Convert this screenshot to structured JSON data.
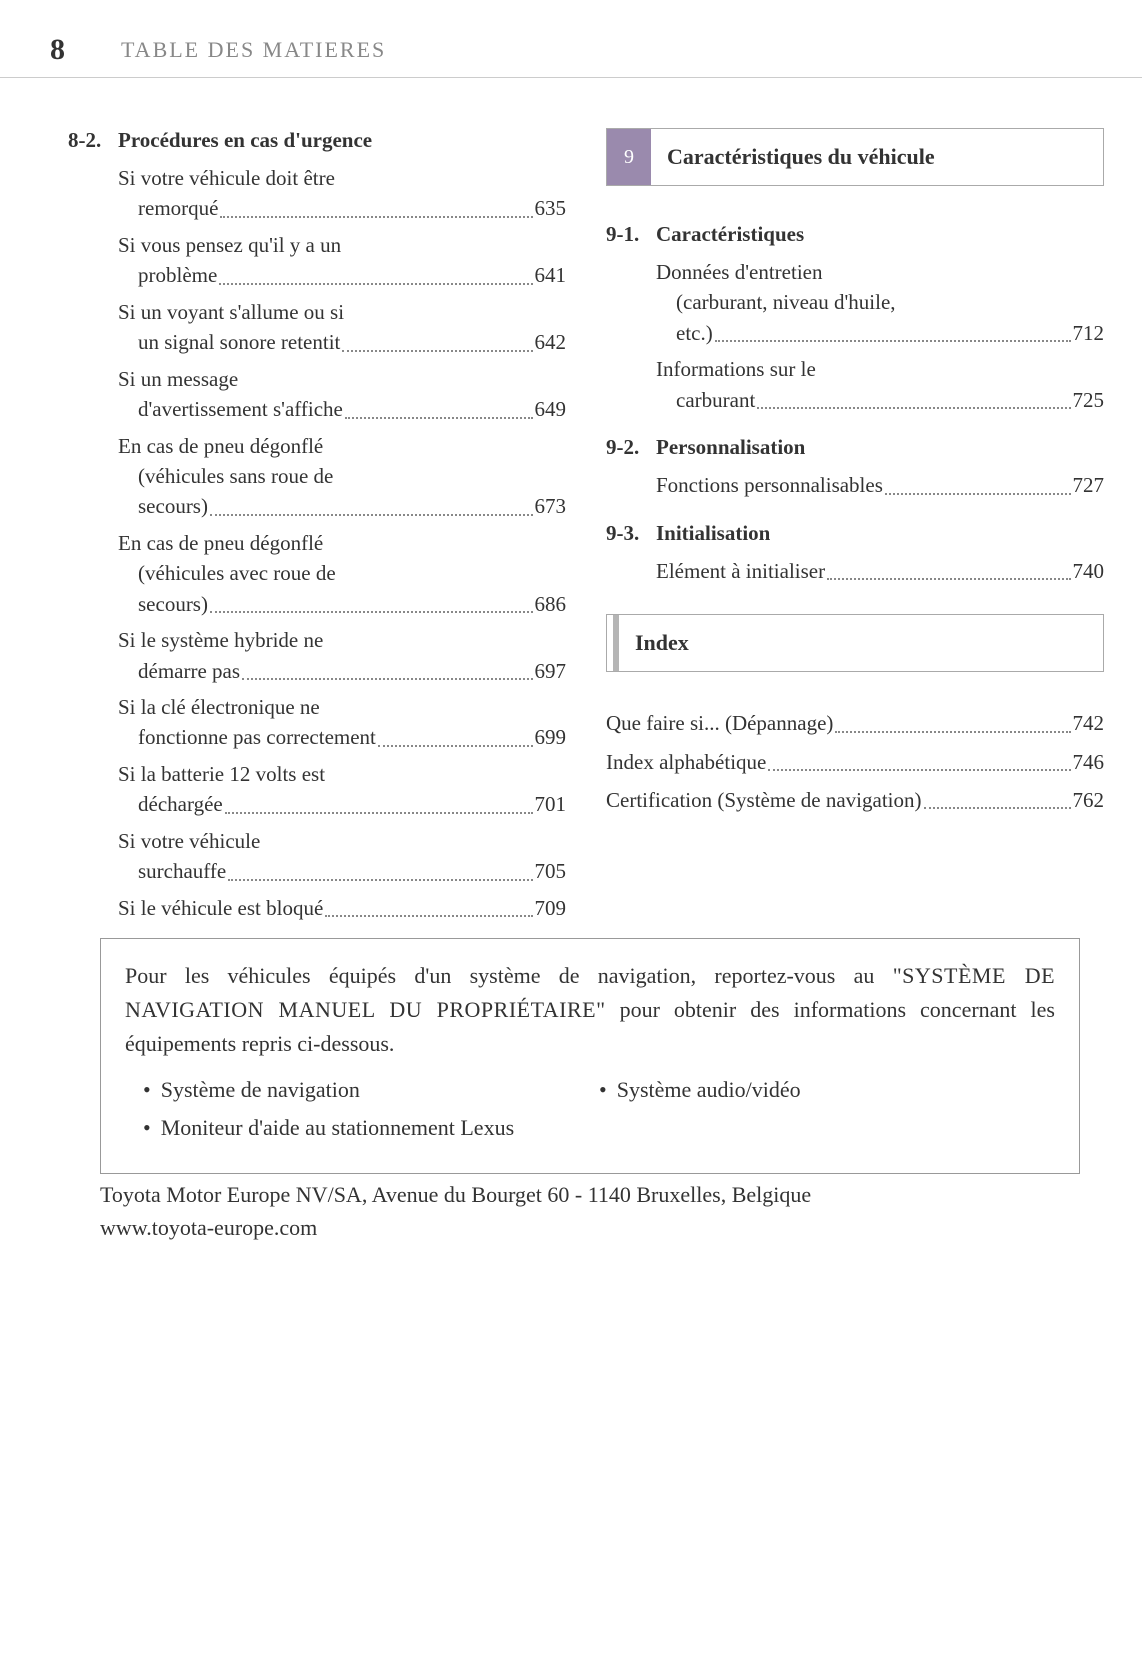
{
  "header": {
    "page_number": "8",
    "title": "TABLE DES MATIERES"
  },
  "left": {
    "section_num": "8-2.",
    "section_title": "Procédures en cas d'urgence",
    "entries": [
      {
        "text": "Si votre véhicule doit être remorqué",
        "page": "635"
      },
      {
        "text": "Si vous pensez qu'il y a un problème",
        "page": "641"
      },
      {
        "text": "Si un voyant s'allume ou si un signal sonore retentit",
        "page": "642"
      },
      {
        "text": "Si un message d'avertissement s'affiche",
        "page": "649"
      },
      {
        "text": "En cas de pneu dégonflé (véhicules sans roue de secours)",
        "page": "673"
      },
      {
        "text": "En cas de pneu dégonflé (véhicules avec roue de secours)",
        "page": "686"
      },
      {
        "text": "Si le système hybride ne démarre pas",
        "page": "697"
      },
      {
        "text": "Si la clé électronique ne fonctionne pas correctement",
        "page": "699"
      },
      {
        "text": "Si la batterie 12 volts est déchargée",
        "page": "701"
      },
      {
        "text": "Si votre véhicule surchauffe",
        "page": "705"
      },
      {
        "text": "Si le véhicule est bloqué",
        "page": "709"
      }
    ]
  },
  "right": {
    "chapter9_num": "9",
    "chapter9_label": "Caractéristiques du véhicule",
    "s91_num": "9-1.",
    "s91_title": "Caractéristiques",
    "s91_entries": [
      {
        "text": "Données d'entretien (carburant, niveau d'huile, etc.)",
        "page": "712"
      },
      {
        "text": "Informations sur le carburant",
        "page": "725"
      }
    ],
    "s92_num": "9-2.",
    "s92_title": "Personnalisation",
    "s92_entries": [
      {
        "text": "Fonctions personnalisables",
        "page": "727"
      }
    ],
    "s93_num": "9-3.",
    "s93_title": "Initialisation",
    "s93_entries": [
      {
        "text": "Elément à initialiser",
        "page": "740"
      }
    ],
    "index_label": "Index",
    "index_entries": [
      {
        "text": "Que faire si... (Dépannage)",
        "page": "742"
      },
      {
        "text": "Index alphabétique",
        "page": "746"
      },
      {
        "text": "Certification (Système de navigation)",
        "page": "762"
      }
    ]
  },
  "footer": {
    "line1": "Pour les véhicules équipés d'un système de navigation, reportez-vous au",
    "line2_caps": "\"SYSTÈME DE NAVIGATION MANUEL DU PROPRIÉTAIRE\"",
    "line2_rest": " pour obtenir",
    "line3": "des informations concernant les équipements repris ci-dessous.",
    "bullets_left": [
      "Système de navigation",
      "Moniteur d'aide au stationnement Lexus"
    ],
    "bullets_right": [
      "Système audio/vidéo"
    ]
  },
  "company": {
    "line1": "Toyota Motor Europe NV/SA, Avenue du Bourget 60 - 1140 Bruxelles, Belgique",
    "line2": "www.toyota-europe.com"
  },
  "colors": {
    "chapter_accent": "#9a8aad",
    "rule": "#cccccc",
    "text": "#333333",
    "muted": "#888888"
  }
}
